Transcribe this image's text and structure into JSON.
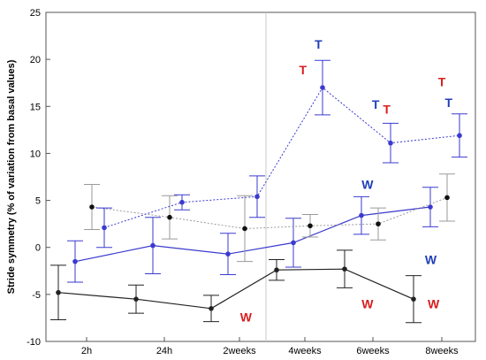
{
  "chart_data": {
    "type": "line",
    "ylabel": "Stride symmetry (% of variation from basal values)",
    "xlabel": "",
    "categories": [
      "2h",
      "24h",
      "2weeks",
      "4weeks",
      "6weeks",
      "8weeks"
    ],
    "ylim": [
      -10,
      25
    ],
    "yticks": [
      -10,
      -5,
      0,
      5,
      10,
      15,
      20,
      25
    ],
    "grid": "vertical line at 4weeks",
    "series": [
      {
        "style": "solid-black",
        "color": "#222222",
        "values": [
          -4.8,
          -5.5,
          -6.5,
          -2.4,
          -2.3,
          -5.5
        ],
        "err": [
          2.9,
          1.5,
          1.4,
          1.1,
          2.0,
          2.5
        ]
      },
      {
        "style": "solid-blue",
        "color": "#3a3ad0",
        "values": [
          -1.5,
          0.2,
          -0.7,
          0.5,
          3.4,
          4.3
        ],
        "err": [
          2.2,
          3.0,
          2.2,
          2.6,
          2.0,
          2.1
        ]
      },
      {
        "style": "dotted-gray",
        "color": "#9a9a9a",
        "values": [
          4.3,
          3.2,
          2.0,
          2.3,
          2.5,
          5.3
        ],
        "err": [
          2.4,
          2.3,
          3.5,
          1.2,
          1.7,
          2.5
        ]
      },
      {
        "style": "dotted-blue",
        "color": "#3a3ad0",
        "values": [
          2.1,
          4.8,
          5.4,
          17.0,
          11.1,
          11.9
        ],
        "err": [
          2.1,
          0.8,
          2.2,
          2.9,
          2.1,
          2.3
        ]
      }
    ],
    "annotations": [
      {
        "text": "W",
        "color": "#d81e1e",
        "x": 2.1,
        "y": -7.4
      },
      {
        "text": "T",
        "color": "#d81e1e",
        "x": 2.97,
        "y": 18.9
      },
      {
        "text": "T",
        "color": "#1f3fb8",
        "x": 3.2,
        "y": 21.6
      },
      {
        "text": "W",
        "color": "#1f3fb8",
        "x": 3.92,
        "y": 6.7
      },
      {
        "text": "W",
        "color": "#d81e1e",
        "x": 3.92,
        "y": -6.0
      },
      {
        "text": "T",
        "color": "#1f3fb8",
        "x": 4.04,
        "y": 15.2
      },
      {
        "text": "T",
        "color": "#d81e1e",
        "x": 4.2,
        "y": 14.7
      },
      {
        "text": "W",
        "color": "#1f3fb8",
        "x": 4.84,
        "y": -1.3
      },
      {
        "text": "W",
        "color": "#d81e1e",
        "x": 4.88,
        "y": -6.0
      },
      {
        "text": "T",
        "color": "#d81e1e",
        "x": 5.0,
        "y": 17.6
      },
      {
        "text": "T",
        "color": "#1f3fb8",
        "x": 5.1,
        "y": 15.4
      }
    ]
  }
}
